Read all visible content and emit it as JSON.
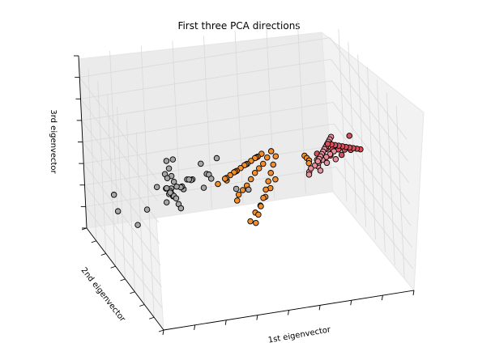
{
  "chart_data": {
    "type": "scatter",
    "title": "First three PCA directions",
    "xlabel": "1st eigenvector",
    "ylabel": "2nd eigenvector",
    "zlabel": "3rd eigenvector",
    "projection": "3d",
    "tick_labels": "hidden",
    "grid": true,
    "colors": {
      "gray": "#a6a6a6",
      "orange": "#f28e2b",
      "red": "#d94f5c",
      "pink": "#e8909b",
      "marker_edge": "#000000"
    },
    "series": [
      {
        "color": "#a6a6a6",
        "x": [
          0.05,
          0.08,
          0.09,
          0.1,
          0.11,
          0.12,
          0.1,
          0.15,
          0.18,
          0.2,
          0.22,
          0.25,
          0.28,
          0.3,
          0.32,
          0.35,
          0.38,
          0.4,
          0.1,
          0.12,
          0.14,
          0.16,
          0.18,
          0.2,
          0.24,
          0.26,
          0.28,
          0.3,
          0.34,
          0.36,
          0.38,
          0.4,
          0.42,
          0.06,
          0.07,
          0.2,
          0.3,
          0.4,
          0.5,
          0.45,
          0.3
        ],
        "y": [
          0.05,
          0.1,
          0.15,
          0.2,
          0.25,
          0.3,
          0.35,
          0.4,
          0.45,
          0.5,
          0.55,
          0.6,
          0.65,
          0.7,
          0.75,
          0.8,
          0.85,
          0.9,
          0.95,
          0.1,
          0.2,
          0.3,
          0.4,
          0.5,
          0.6,
          0.7,
          0.8,
          0.9,
          0.95,
          0.5,
          0.6,
          0.3,
          0.2,
          0.5,
          0.8,
          0.85,
          0.6,
          0.7,
          0.9,
          0.95,
          0.4
        ],
        "z": [
          0.7,
          0.72,
          0.68,
          0.74,
          0.65,
          0.7,
          0.6,
          0.55,
          0.5,
          0.45,
          0.4,
          0.42,
          0.38,
          0.35,
          0.3,
          0.32,
          0.28,
          0.25,
          0.2,
          0.62,
          0.58,
          0.55,
          0.5,
          0.48,
          0.45,
          0.42,
          0.4,
          0.38,
          0.35,
          0.5,
          0.46,
          0.55,
          0.6,
          0.3,
          0.2,
          0.15,
          0.45,
          0.4,
          0.35,
          0.3,
          0.52
        ]
      },
      {
        "color": "#f28e2b",
        "x": [
          0.3,
          0.32,
          0.35,
          0.38,
          0.4,
          0.42,
          0.45,
          0.48,
          0.5,
          0.52,
          0.55,
          0.58,
          0.6,
          0.62,
          0.65,
          0.35,
          0.38,
          0.42,
          0.46,
          0.5,
          0.54,
          0.58,
          0.62,
          0.66,
          0.7,
          0.4,
          0.44,
          0.48,
          0.52,
          0.56,
          0.6,
          0.64,
          0.68,
          0.72,
          0.45,
          0.5,
          0.55,
          0.6,
          0.65,
          0.7,
          0.5,
          0.55,
          0.75,
          0.78,
          0.8,
          0.82
        ],
        "y": [
          0.1,
          0.15,
          0.2,
          0.25,
          0.3,
          0.35,
          0.4,
          0.45,
          0.5,
          0.55,
          0.6,
          0.65,
          0.7,
          0.75,
          0.8,
          0.12,
          0.2,
          0.28,
          0.36,
          0.44,
          0.52,
          0.6,
          0.68,
          0.76,
          0.84,
          0.05,
          0.15,
          0.25,
          0.35,
          0.45,
          0.55,
          0.65,
          0.75,
          0.85,
          0.3,
          0.4,
          0.5,
          0.6,
          0.7,
          0.8,
          0.9,
          0.95,
          0.5,
          0.6,
          0.7,
          0.8
        ],
        "z": [
          0.75,
          0.72,
          0.7,
          0.68,
          0.65,
          0.62,
          0.6,
          0.58,
          0.55,
          0.52,
          0.5,
          0.48,
          0.45,
          0.42,
          0.4,
          0.6,
          0.58,
          0.55,
          0.52,
          0.5,
          0.48,
          0.45,
          0.42,
          0.4,
          0.38,
          0.5,
          0.48,
          0.46,
          0.44,
          0.42,
          0.4,
          0.38,
          0.36,
          0.34,
          0.35,
          0.33,
          0.3,
          0.28,
          0.26,
          0.24,
          0.2,
          0.18,
          0.5,
          0.45,
          0.4,
          0.35
        ]
      },
      {
        "color": "#e8909b",
        "x": [
          0.7,
          0.72,
          0.74,
          0.76,
          0.78,
          0.8,
          0.82,
          0.84,
          0.86,
          0.88,
          0.9,
          0.7,
          0.73,
          0.76,
          0.79,
          0.82,
          0.85,
          0.88,
          0.91,
          0.75,
          0.8,
          0.85,
          0.9,
          0.72,
          0.78,
          0.84
        ],
        "y": [
          0.2,
          0.25,
          0.3,
          0.35,
          0.4,
          0.45,
          0.5,
          0.55,
          0.6,
          0.65,
          0.7,
          0.3,
          0.35,
          0.4,
          0.45,
          0.5,
          0.55,
          0.6,
          0.65,
          0.5,
          0.55,
          0.6,
          0.65,
          0.4,
          0.45,
          0.7
        ],
        "z": [
          0.7,
          0.68,
          0.66,
          0.64,
          0.62,
          0.6,
          0.58,
          0.56,
          0.54,
          0.52,
          0.5,
          0.6,
          0.58,
          0.56,
          0.54,
          0.52,
          0.5,
          0.48,
          0.46,
          0.45,
          0.44,
          0.42,
          0.4,
          0.5,
          0.48,
          0.38
        ]
      },
      {
        "color": "#d94f5c",
        "x": [
          0.8,
          0.82,
          0.84,
          0.86,
          0.88,
          0.9,
          0.92,
          0.94,
          0.96,
          0.98,
          0.85,
          0.88,
          0.91,
          0.94,
          0.97,
          0.86,
          0.9,
          0.95,
          0.99,
          0.87
        ],
        "y": [
          0.4,
          0.42,
          0.44,
          0.46,
          0.48,
          0.5,
          0.52,
          0.54,
          0.56,
          0.58,
          0.6,
          0.62,
          0.64,
          0.66,
          0.68,
          0.7,
          0.72,
          0.74,
          0.76,
          0.8
        ],
        "z": [
          0.66,
          0.64,
          0.62,
          0.6,
          0.58,
          0.56,
          0.54,
          0.52,
          0.5,
          0.48,
          0.5,
          0.48,
          0.46,
          0.44,
          0.42,
          0.4,
          0.38,
          0.36,
          0.45,
          0.35
        ]
      }
    ]
  }
}
